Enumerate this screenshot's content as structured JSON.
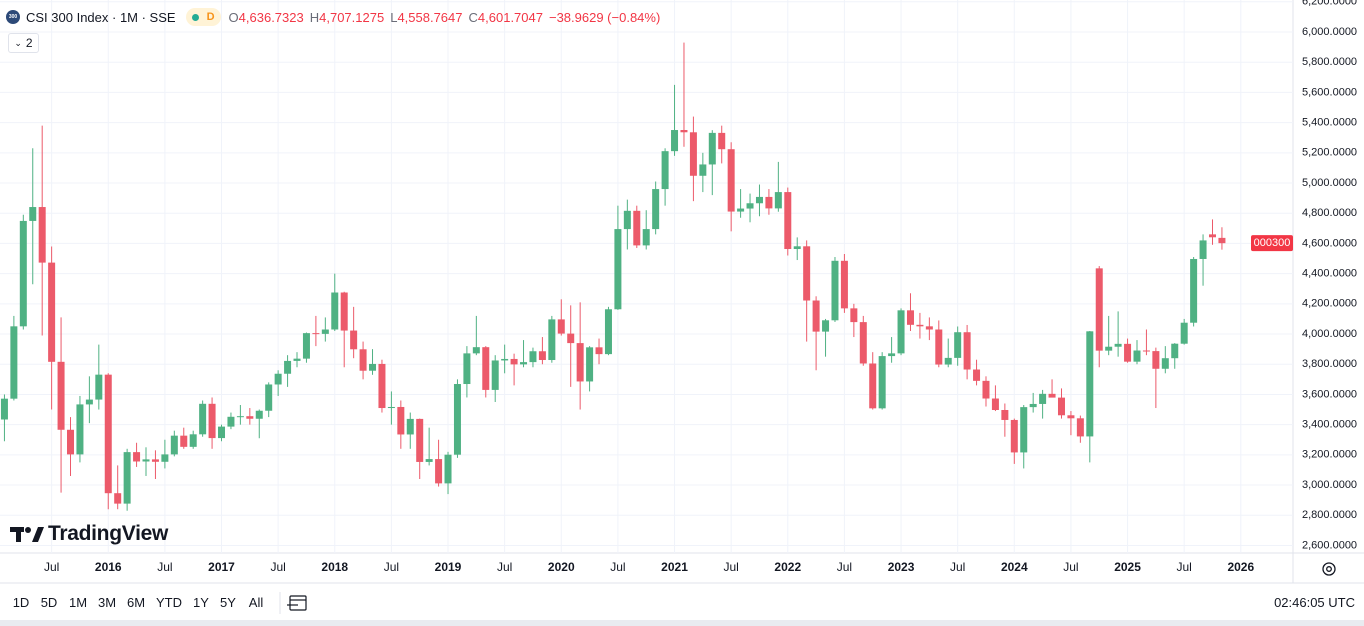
{
  "header": {
    "logo": "300",
    "symbol": "CSI 300 Index · 1M · SSE",
    "badge": "D",
    "open_label": "O",
    "open": "4,636.7323",
    "high_label": "H",
    "high": "4,707.1275",
    "low_label": "L",
    "low": "4,558.7647",
    "close_label": "C",
    "close": "4,601.7047",
    "change": "−38.9629 (−0.84%)",
    "indicators": "2"
  },
  "watermark": "TradingView",
  "toolbar": {
    "ranges": [
      "1D",
      "5D",
      "1M",
      "3M",
      "6M",
      "YTD",
      "1Y",
      "5Y",
      "All"
    ],
    "time": "02:46:05 UTC"
  },
  "chart_data": {
    "type": "candlestick",
    "up_color": "#4fb183",
    "down_color": "#ec5a6a",
    "grid": true,
    "last_price_label": "000300",
    "xlim": [
      "2015-01",
      "2026-06"
    ],
    "ylim": [
      2550,
      6212
    ],
    "yticks": [
      {
        "value": 2600,
        "label": "2,600.0000"
      },
      {
        "value": 2800,
        "label": "2,800.0000"
      },
      {
        "value": 3000,
        "label": "3,000.0000"
      },
      {
        "value": 3200,
        "label": "3,200.0000"
      },
      {
        "value": 3400,
        "label": "3,400.0000"
      },
      {
        "value": 3600,
        "label": "3,600.0000"
      },
      {
        "value": 3800,
        "label": "3,800.0000"
      },
      {
        "value": 4000,
        "label": "4,000.0000"
      },
      {
        "value": 4200,
        "label": "4,200.0000"
      },
      {
        "value": 4400,
        "label": "4,400.0000"
      },
      {
        "value": 4600,
        "label": "4,600.0000"
      },
      {
        "value": 4800,
        "label": "4,800.0000"
      },
      {
        "value": 5000,
        "label": "5,000.0000"
      },
      {
        "value": 5200,
        "label": "5,200.0000"
      },
      {
        "value": 5400,
        "label": "5,400.0000"
      },
      {
        "value": 5600,
        "label": "5,600.0000"
      },
      {
        "value": 5800,
        "label": "5,800.0000"
      },
      {
        "value": 6000,
        "label": "6,000.0000"
      },
      {
        "value": 6200,
        "label": "6,200.0000"
      }
    ],
    "xticks": [
      {
        "value": "2015-07",
        "label": "Jul"
      },
      {
        "value": "2016-01",
        "label": "2016"
      },
      {
        "value": "2016-07",
        "label": "Jul"
      },
      {
        "value": "2017-01",
        "label": "2017"
      },
      {
        "value": "2017-07",
        "label": "Jul"
      },
      {
        "value": "2018-01",
        "label": "2018"
      },
      {
        "value": "2018-07",
        "label": "Jul"
      },
      {
        "value": "2019-01",
        "label": "2019"
      },
      {
        "value": "2019-07",
        "label": "Jul"
      },
      {
        "value": "2020-01",
        "label": "2020"
      },
      {
        "value": "2020-07",
        "label": "Jul"
      },
      {
        "value": "2021-01",
        "label": "2021"
      },
      {
        "value": "2021-07",
        "label": "Jul"
      },
      {
        "value": "2022-01",
        "label": "2022"
      },
      {
        "value": "2022-07",
        "label": "Jul"
      },
      {
        "value": "2023-01",
        "label": "2023"
      },
      {
        "value": "2023-07",
        "label": "Jul"
      },
      {
        "value": "2024-01",
        "label": "2024"
      },
      {
        "value": "2024-07",
        "label": "Jul"
      },
      {
        "value": "2025-01",
        "label": "2025"
      },
      {
        "value": "2025-07",
        "label": "Jul"
      },
      {
        "value": "2026-01",
        "label": "2026"
      }
    ],
    "x": [
      "2015-02",
      "2015-03",
      "2015-04",
      "2015-05",
      "2015-06",
      "2015-07",
      "2015-08",
      "2015-09",
      "2015-10",
      "2015-11",
      "2015-12",
      "2016-01",
      "2016-02",
      "2016-03",
      "2016-04",
      "2016-05",
      "2016-06",
      "2016-07",
      "2016-08",
      "2016-09",
      "2016-10",
      "2016-11",
      "2016-12",
      "2017-01",
      "2017-02",
      "2017-03",
      "2017-04",
      "2017-05",
      "2017-06",
      "2017-07",
      "2017-08",
      "2017-09",
      "2017-10",
      "2017-11",
      "2017-12",
      "2018-01",
      "2018-02",
      "2018-03",
      "2018-04",
      "2018-05",
      "2018-06",
      "2018-07",
      "2018-08",
      "2018-09",
      "2018-10",
      "2018-11",
      "2018-12",
      "2019-01",
      "2019-02",
      "2019-03",
      "2019-04",
      "2019-05",
      "2019-06",
      "2019-07",
      "2019-08",
      "2019-09",
      "2019-10",
      "2019-11",
      "2019-12",
      "2020-01",
      "2020-02",
      "2020-03",
      "2020-04",
      "2020-05",
      "2020-06",
      "2020-07",
      "2020-08",
      "2020-09",
      "2020-10",
      "2020-11",
      "2020-12",
      "2021-01",
      "2021-02",
      "2021-03",
      "2021-04",
      "2021-05",
      "2021-06",
      "2021-07",
      "2021-08",
      "2021-09",
      "2021-10",
      "2021-11",
      "2021-12",
      "2022-01",
      "2022-02",
      "2022-03",
      "2022-04",
      "2022-05",
      "2022-06",
      "2022-07",
      "2022-08",
      "2022-09",
      "2022-10",
      "2022-11",
      "2022-12",
      "2023-01",
      "2023-02",
      "2023-03",
      "2023-04",
      "2023-05",
      "2023-06",
      "2023-07",
      "2023-08",
      "2023-09",
      "2023-10",
      "2023-11",
      "2023-12",
      "2024-01",
      "2024-02",
      "2024-03",
      "2024-04",
      "2024-05",
      "2024-06",
      "2024-07",
      "2024-08",
      "2024-09",
      "2024-10",
      "2024-11",
      "2024-12",
      "2025-01",
      "2025-02",
      "2025-03",
      "2025-04",
      "2025-05",
      "2025-06",
      "2025-07",
      "2025-08",
      "2025-09",
      "2025-10",
      "2025-11"
    ],
    "open": [
      3434,
      3572,
      4051,
      4749,
      4841,
      4473,
      3816,
      3366,
      3203,
      3534,
      3566,
      3731,
      2946,
      2877,
      3218,
      3156,
      3170,
      3154,
      3203,
      3327,
      3253,
      3336,
      3538,
      3311,
      3387,
      3452,
      3456,
      3439,
      3492,
      3666,
      3737,
      3822,
      3837,
      4006,
      4001,
      4030,
      4275,
      4023,
      3899,
      3757,
      3802,
      3510,
      3517,
      3335,
      3438,
      3153,
      3172,
      3011,
      3201,
      3669,
      3872,
      3913,
      3630,
      3825,
      3835,
      3799,
      3814,
      3886,
      3828,
      4097,
      4003,
      3940,
      3686,
      3912,
      3867,
      4164,
      4695,
      4816,
      4587,
      4695,
      4960,
      5211,
      5351,
      5336,
      5048,
      5123,
      5332,
      5224,
      4811,
      4831,
      4866,
      4908,
      4832,
      4940,
      4563,
      4581,
      4222,
      4016,
      4091,
      4485,
      4170,
      4079,
      3805,
      3508,
      3854,
      3872,
      4157,
      4061,
      4051,
      4030,
      3798,
      3842,
      4012,
      3765,
      3690,
      3573,
      3497,
      3431,
      3216,
      3516,
      3537,
      3604,
      3579,
      3462,
      3442,
      3322,
      4435,
      3890,
      3916,
      3935,
      3817,
      3891,
      3887,
      3770,
      3840,
      3936,
      4075,
      4497,
      4660,
      4636.7323
    ],
    "high": [
      3600,
      4120,
      4790,
      5230,
      5380,
      4580,
      4110,
      3450,
      3590,
      3720,
      3930,
      3740,
      3130,
      3240,
      3280,
      3250,
      3230,
      3300,
      3360,
      3380,
      3360,
      3560,
      3580,
      3400,
      3480,
      3530,
      3510,
      3500,
      3680,
      3760,
      3860,
      3880,
      4010,
      4120,
      4110,
      4400,
      4280,
      4180,
      3950,
      3900,
      3830,
      3620,
      3560,
      3480,
      3440,
      3380,
      3300,
      3220,
      3700,
      3920,
      4120,
      3920,
      3860,
      3930,
      3870,
      3960,
      3910,
      3980,
      4120,
      4230,
      4190,
      4210,
      3920,
      3970,
      4180,
      4850,
      4890,
      4850,
      4820,
      5010,
      5230,
      5650,
      5930,
      5440,
      5200,
      5350,
      5380,
      5270,
      4960,
      4930,
      4990,
      4960,
      5140,
      4970,
      4640,
      4620,
      4250,
      4100,
      4510,
      4530,
      4200,
      4120,
      3880,
      3880,
      3980,
      4170,
      4270,
      4140,
      4110,
      4090,
      3970,
      4050,
      4060,
      3830,
      3720,
      3660,
      3540,
      3440,
      3530,
      3610,
      3630,
      3700,
      3640,
      3490,
      3460,
      4020,
      4450,
      4120,
      4150,
      3970,
      3960,
      4030,
      3910,
      3920,
      3940,
      4100,
      4510,
      4660,
      4759,
      4707.1275
    ],
    "low": [
      3290,
      3560,
      4030,
      4330,
      3990,
      3500,
      2950,
      3060,
      3150,
      3410,
      3500,
      2840,
      2840,
      2830,
      3120,
      3060,
      3040,
      3110,
      3190,
      3240,
      3240,
      3320,
      3240,
      3290,
      3370,
      3400,
      3400,
      3310,
      3450,
      3590,
      3650,
      3780,
      3810,
      3920,
      3950,
      4020,
      3780,
      3840,
      3700,
      3730,
      3480,
      3400,
      3240,
      3240,
      3040,
      3130,
      2990,
      2940,
      3180,
      3580,
      3860,
      3580,
      3550,
      3740,
      3660,
      3780,
      3780,
      3800,
      3810,
      3990,
      3650,
      3500,
      3620,
      3800,
      3860,
      4160,
      4560,
      4570,
      4560,
      4660,
      4850,
      5180,
      5240,
      4880,
      4940,
      4920,
      5130,
      4680,
      4770,
      4740,
      4780,
      4790,
      4810,
      4520,
      4490,
      3950,
      3760,
      3850,
      4080,
      4140,
      3980,
      3790,
      3500,
      3500,
      3810,
      3860,
      4020,
      3970,
      3960,
      3780,
      3780,
      3790,
      3700,
      3660,
      3520,
      3490,
      3320,
      3140,
      3110,
      3480,
      3440,
      3580,
      3440,
      3330,
      3280,
      3150,
      3780,
      3860,
      3850,
      3810,
      3800,
      3860,
      3510,
      3740,
      3770,
      3930,
      4050,
      4320,
      4591,
      4558.7647
    ],
    "close": [
      3572,
      4051,
      4749,
      4841,
      4473,
      3816,
      3366,
      3203,
      3534,
      3566,
      3731,
      2946,
      2877,
      3218,
      3156,
      3170,
      3154,
      3203,
      3327,
      3253,
      3336,
      3538,
      3311,
      3387,
      3452,
      3456,
      3439,
      3492,
      3666,
      3737,
      3822,
      3837,
      4006,
      4001,
      4030,
      4275,
      4023,
      3899,
      3757,
      3802,
      3510,
      3517,
      3335,
      3438,
      3153,
      3172,
      3011,
      3201,
      3669,
      3872,
      3913,
      3630,
      3825,
      3835,
      3799,
      3814,
      3886,
      3828,
      4097,
      4003,
      3940,
      3686,
      3912,
      3867,
      4164,
      4695,
      4816,
      4587,
      4695,
      4960,
      5211,
      5351,
      5336,
      5048,
      5123,
      5332,
      5224,
      4811,
      4831,
      4866,
      4908,
      4832,
      4940,
      4563,
      4581,
      4222,
      4016,
      4091,
      4485,
      4170,
      4079,
      3805,
      3508,
      3854,
      3872,
      4157,
      4061,
      4051,
      4030,
      3798,
      3842,
      4012,
      3765,
      3690,
      3573,
      3497,
      3431,
      3216,
      3516,
      3537,
      3604,
      3579,
      3462,
      3442,
      3322,
      4018,
      3890,
      3916,
      3935,
      3817,
      3891,
      3887,
      3770,
      3840,
      3936,
      4075,
      4497,
      4620,
      4640.6676,
      4601.7047
    ]
  }
}
